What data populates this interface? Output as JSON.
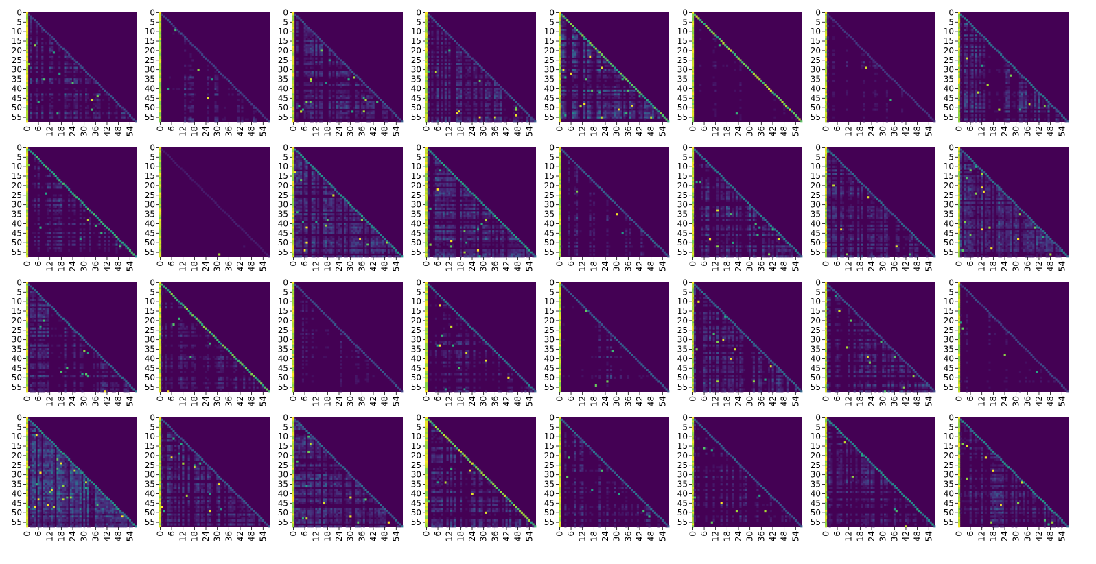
{
  "chart_data": {
    "type": "heatmap",
    "layout": {
      "rows": 4,
      "cols": 8
    },
    "colormap": "viridis",
    "colorbar": false,
    "grid": false,
    "mask": "upper-triangle",
    "matrix_size": 58,
    "y_ticks": [
      0,
      5,
      10,
      15,
      20,
      25,
      30,
      35,
      40,
      45,
      50,
      55
    ],
    "x_ticks": [
      0,
      6,
      12,
      18,
      24,
      30,
      36,
      42,
      48,
      54
    ],
    "y_tick_labels": [
      "0",
      "5",
      "10",
      "15",
      "20",
      "25",
      "30",
      "35",
      "40",
      "45",
      "50",
      "55"
    ],
    "x_tick_labels": [
      "0",
      "6",
      "12",
      "18",
      "24",
      "30",
      "36",
      "42",
      "48",
      "54"
    ],
    "panels": [
      {
        "id": 1,
        "diag": 0.3,
        "density": 0.45,
        "level": 0.25
      },
      {
        "id": 2,
        "diag": 0.25,
        "density": 0.15,
        "level": 0.2
      },
      {
        "id": 3,
        "diag": 0.3,
        "density": 0.55,
        "level": 0.22
      },
      {
        "id": 4,
        "diag": 0.3,
        "density": 0.5,
        "level": 0.22
      },
      {
        "id": 5,
        "diag": 0.85,
        "density": 0.6,
        "level": 0.35
      },
      {
        "id": 6,
        "diag": 0.95,
        "density": 0.1,
        "level": 0.15
      },
      {
        "id": 7,
        "diag": 0.2,
        "density": 0.2,
        "level": 0.18
      },
      {
        "id": 8,
        "diag": 0.45,
        "density": 0.4,
        "level": 0.25
      },
      {
        "id": 9,
        "diag": 0.75,
        "density": 0.4,
        "level": 0.22
      },
      {
        "id": 10,
        "diag": 0.1,
        "density": 0.04,
        "level": 0.15
      },
      {
        "id": 11,
        "diag": 0.6,
        "density": 0.7,
        "level": 0.25
      },
      {
        "id": 12,
        "diag": 0.65,
        "density": 0.6,
        "level": 0.25
      },
      {
        "id": 13,
        "diag": 0.35,
        "density": 0.2,
        "level": 0.2
      },
      {
        "id": 14,
        "diag": 0.5,
        "density": 0.55,
        "level": 0.25
      },
      {
        "id": 15,
        "diag": 0.4,
        "density": 0.5,
        "level": 0.22
      },
      {
        "id": 16,
        "diag": 0.45,
        "density": 0.7,
        "level": 0.24
      },
      {
        "id": 17,
        "diag": 0.4,
        "density": 0.5,
        "level": 0.22
      },
      {
        "id": 18,
        "diag": 0.85,
        "density": 0.35,
        "level": 0.2
      },
      {
        "id": 19,
        "diag": 0.3,
        "density": 0.15,
        "level": 0.2
      },
      {
        "id": 20,
        "diag": 0.45,
        "density": 0.3,
        "level": 0.22
      },
      {
        "id": 21,
        "diag": 0.35,
        "density": 0.2,
        "level": 0.2
      },
      {
        "id": 22,
        "diag": 0.4,
        "density": 0.5,
        "level": 0.22
      },
      {
        "id": 23,
        "diag": 0.3,
        "density": 0.45,
        "level": 0.25
      },
      {
        "id": 24,
        "diag": 0.25,
        "density": 0.12,
        "level": 0.18
      },
      {
        "id": 25,
        "diag": 0.6,
        "density": 0.85,
        "level": 0.32
      },
      {
        "id": 26,
        "diag": 0.35,
        "density": 0.6,
        "level": 0.22
      },
      {
        "id": 27,
        "diag": 0.4,
        "density": 0.6,
        "level": 0.25
      },
      {
        "id": 28,
        "diag": 0.95,
        "density": 0.45,
        "level": 0.25
      },
      {
        "id": 29,
        "diag": 0.4,
        "density": 0.3,
        "level": 0.2
      },
      {
        "id": 30,
        "diag": 0.35,
        "density": 0.3,
        "level": 0.2
      },
      {
        "id": 31,
        "diag": 0.6,
        "density": 0.45,
        "level": 0.22
      },
      {
        "id": 32,
        "diag": 0.55,
        "density": 0.4,
        "level": 0.25
      }
    ]
  }
}
